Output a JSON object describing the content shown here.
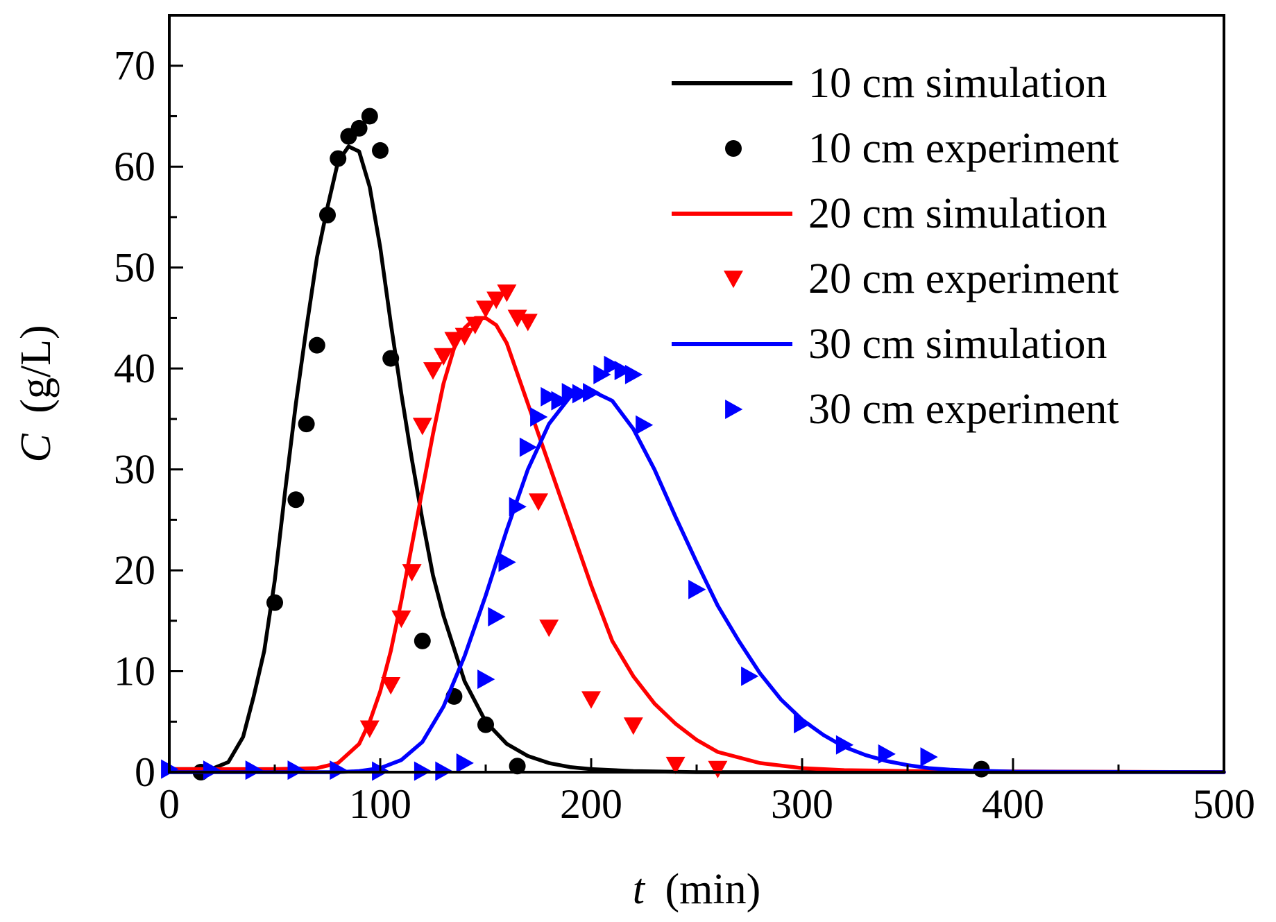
{
  "chart_data": {
    "type": "line",
    "title": "",
    "xlabel_var": "t",
    "xlabel_unit": "(min)",
    "ylabel_var": "C",
    "ylabel_unit": "(g/L)",
    "xlim": [
      0,
      500
    ],
    "ylim": [
      0,
      75
    ],
    "xticks": [
      0,
      100,
      200,
      300,
      400,
      500
    ],
    "xtick_labels": [
      "0",
      "100",
      "200",
      "300",
      "400",
      "500"
    ],
    "yticks": [
      0,
      10,
      20,
      30,
      40,
      50,
      60,
      70
    ],
    "ytick_labels": [
      "0",
      "10",
      "20",
      "30",
      "40",
      "50",
      "60",
      "70"
    ],
    "grid": false,
    "legend_position": "top-right",
    "series": [
      {
        "name": "10 cm simulation",
        "kind": "line",
        "color": "#000000",
        "x": [
          0,
          20,
          28,
          35,
          40,
          45,
          50,
          55,
          60,
          65,
          70,
          75,
          80,
          85,
          90,
          95,
          100,
          105,
          110,
          115,
          120,
          125,
          130,
          140,
          150,
          160,
          170,
          180,
          190,
          200,
          220,
          250,
          300,
          500
        ],
        "y": [
          0.3,
          0.3,
          1.0,
          3.5,
          7.5,
          12.0,
          19.0,
          28.0,
          36.5,
          44.0,
          51.0,
          56.0,
          60.5,
          62.0,
          61.5,
          58.0,
          52.0,
          44.5,
          37.5,
          31.0,
          25.0,
          19.5,
          15.5,
          9.0,
          5.0,
          2.8,
          1.6,
          0.9,
          0.5,
          0.3,
          0.1,
          0.0,
          0.0,
          0.0
        ]
      },
      {
        "name": "10 cm experiment",
        "kind": "scatter",
        "marker": "circle",
        "color": "#000000",
        "x": [
          15,
          50,
          60,
          65,
          70,
          75,
          80,
          85,
          90,
          95,
          100,
          105,
          120,
          135,
          150,
          165,
          385
        ],
        "y": [
          0.0,
          16.8,
          27.0,
          34.5,
          42.3,
          55.2,
          60.8,
          63.0,
          63.8,
          65.0,
          61.6,
          41.0,
          13.0,
          7.5,
          4.7,
          0.6,
          0.3
        ]
      },
      {
        "name": "20 cm simulation",
        "kind": "line",
        "color": "#ff0000",
        "x": [
          0,
          50,
          70,
          80,
          90,
          95,
          100,
          105,
          110,
          115,
          120,
          125,
          130,
          135,
          140,
          145,
          150,
          155,
          160,
          165,
          170,
          180,
          190,
          200,
          210,
          220,
          230,
          240,
          250,
          260,
          280,
          300,
          320,
          350,
          500
        ],
        "y": [
          0.3,
          0.3,
          0.4,
          0.9,
          2.8,
          5.0,
          8.0,
          12.0,
          17.0,
          22.5,
          28.0,
          33.5,
          38.5,
          42.0,
          44.0,
          45.0,
          45.0,
          44.3,
          42.5,
          39.5,
          36.5,
          30.5,
          24.5,
          18.5,
          13.0,
          9.5,
          6.8,
          4.8,
          3.2,
          2.0,
          0.9,
          0.4,
          0.2,
          0.1,
          0.0
        ]
      },
      {
        "name": "20 cm experiment",
        "kind": "scatter",
        "marker": "triangle-down",
        "color": "#ff0000",
        "x": [
          95,
          105,
          110,
          115,
          120,
          125,
          130,
          135,
          140,
          145,
          150,
          155,
          160,
          165,
          170,
          175,
          180,
          200,
          220,
          240,
          260
        ],
        "y": [
          4.3,
          8.6,
          15.2,
          19.8,
          34.3,
          39.8,
          41.2,
          42.8,
          43.2,
          44.3,
          45.9,
          46.8,
          47.5,
          45.0,
          44.6,
          26.8,
          14.3,
          7.2,
          4.6,
          0.7,
          0.3
        ]
      },
      {
        "name": "30 cm simulation",
        "kind": "line",
        "color": "#0000ff",
        "x": [
          0,
          80,
          90,
          100,
          110,
          120,
          130,
          140,
          150,
          160,
          170,
          180,
          190,
          200,
          210,
          220,
          230,
          240,
          250,
          260,
          270,
          280,
          290,
          300,
          310,
          320,
          330,
          340,
          350,
          360,
          370,
          380,
          400,
          500
        ],
        "y": [
          0.0,
          0.0,
          0.1,
          0.4,
          1.2,
          3.0,
          6.5,
          11.5,
          17.5,
          24.0,
          30.0,
          34.5,
          37.2,
          37.8,
          36.8,
          34.0,
          30.0,
          25.3,
          20.8,
          16.5,
          13.0,
          9.8,
          7.2,
          5.2,
          3.7,
          2.5,
          1.7,
          1.1,
          0.7,
          0.4,
          0.25,
          0.15,
          0.05,
          0.0
        ]
      },
      {
        "name": "30 cm experiment",
        "kind": "scatter",
        "marker": "triangle-right",
        "color": "#0000ff",
        "x": [
          0,
          20,
          40,
          60,
          80,
          100,
          120,
          130,
          140,
          150,
          155,
          160,
          165,
          170,
          175,
          180,
          185,
          190,
          195,
          200,
          205,
          210,
          215,
          220,
          225,
          250,
          275,
          300,
          320,
          340,
          360
        ],
        "y": [
          0.3,
          0.2,
          0.2,
          0.2,
          0.2,
          0.1,
          0.1,
          0.1,
          0.9,
          9.2,
          15.4,
          20.8,
          26.3,
          32.2,
          35.2,
          37.2,
          36.8,
          37.6,
          37.5,
          37.6,
          39.4,
          40.3,
          39.8,
          39.4,
          34.4,
          18.1,
          9.5,
          4.8,
          2.7,
          1.8,
          1.5
        ]
      }
    ]
  }
}
